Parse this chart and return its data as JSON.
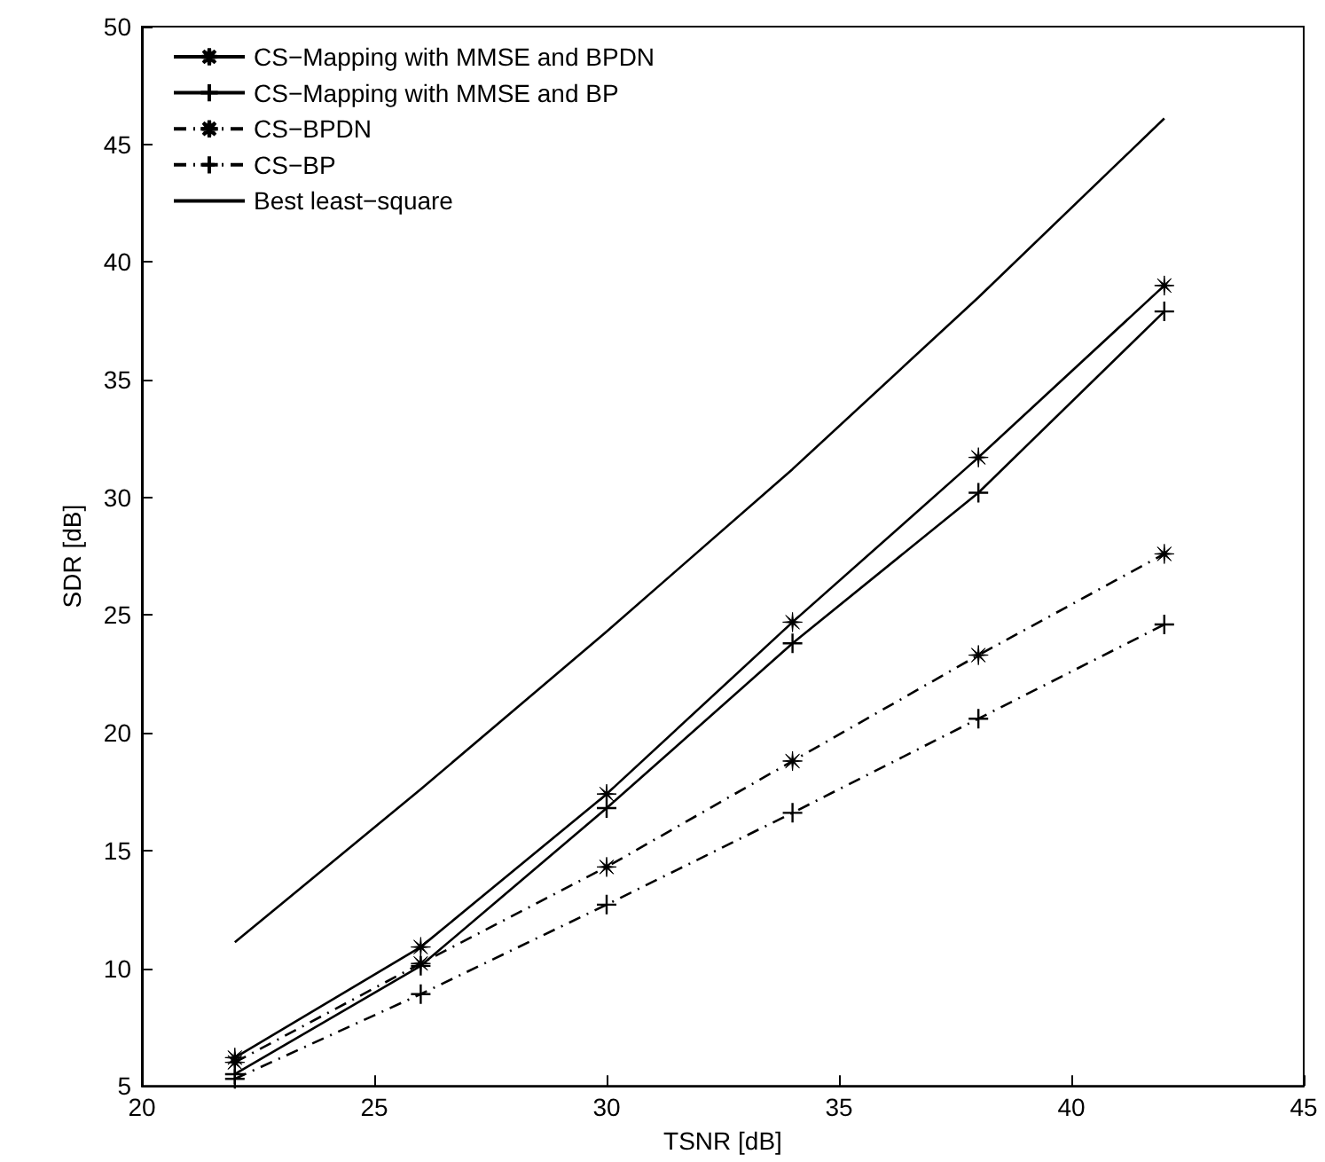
{
  "chart_data": {
    "type": "line",
    "xlabel": "TSNR [dB]",
    "ylabel": "SDR [dB]",
    "x": [
      22,
      26,
      30,
      34,
      38,
      42
    ],
    "series": [
      {
        "name": "CS−Mapping with MMSE and BPDN",
        "color": "#000000",
        "marker": "star",
        "line_style": "solid",
        "values": [
          6.2,
          10.9,
          17.4,
          24.7,
          31.7,
          39.0
        ]
      },
      {
        "name": "CS−Mapping with MMSE and BP",
        "color": "#000000",
        "marker": "cross",
        "line_style": "solid",
        "values": [
          5.5,
          10.1,
          16.8,
          23.8,
          30.2,
          37.9
        ]
      },
      {
        "name": "CS−BPDN",
        "color": "#000000",
        "marker": "star",
        "line_style": "dashed",
        "values": [
          6.0,
          10.2,
          14.3,
          18.8,
          23.3,
          27.6
        ]
      },
      {
        "name": "CS−BP",
        "color": "#000000",
        "marker": "cross",
        "line_style": "dashed",
        "values": [
          5.3,
          8.9,
          12.7,
          16.6,
          20.6,
          24.6
        ]
      },
      {
        "name": "Best least−square",
        "color": "#000000",
        "marker": "none",
        "line_style": "solid",
        "values": [
          11.1,
          17.6,
          24.3,
          31.2,
          38.5,
          46.1
        ]
      }
    ],
    "xlim": [
      20,
      45
    ],
    "xticks": [
      20,
      25,
      30,
      35,
      40,
      45
    ],
    "ylim": [
      5,
      50
    ],
    "yticks": [
      5,
      10,
      15,
      20,
      25,
      30,
      35,
      40,
      45,
      50
    ],
    "grid": false,
    "legend": "top left"
  }
}
